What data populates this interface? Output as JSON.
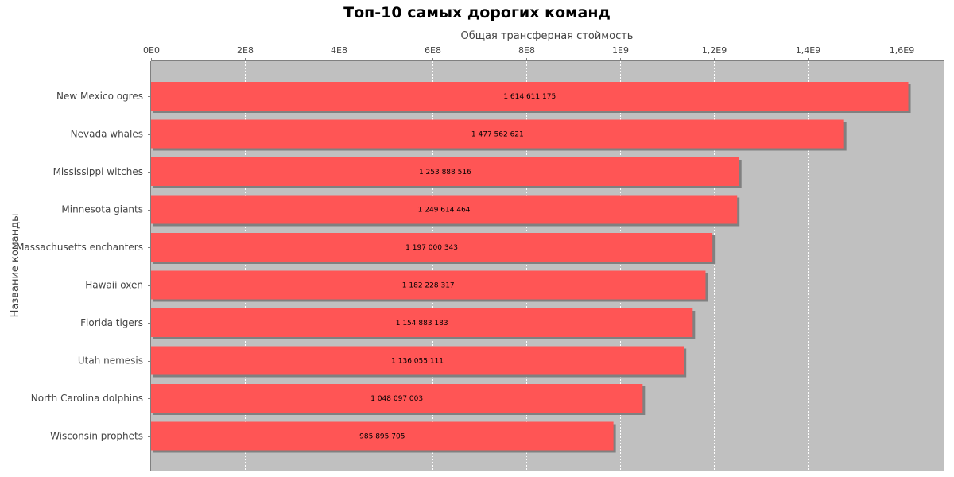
{
  "chart_data": {
    "type": "bar",
    "orientation": "horizontal",
    "title": "Топ-10 самых дорогих команд",
    "xlabel": "Общая трансферная стоймость",
    "ylabel": "Название команды",
    "categories": [
      "New Mexico ogres",
      "Nevada whales",
      "Mississippi witches",
      "Minnesota giants",
      "Massachusetts enchanters",
      "Hawaii oxen",
      "Florida tigers",
      "Utah nemesis",
      "North Carolina dolphins",
      "Wisconsin prophets"
    ],
    "values": [
      1614611175,
      1477562621,
      1253888516,
      1249614464,
      1197000343,
      1182228317,
      1154883183,
      1136055111,
      1048097003,
      985895705
    ],
    "value_labels": [
      "1 614 611 175",
      "1 477 562 621",
      "1 253 888 516",
      "1 249 614 464",
      "1 197 000 343",
      "1 182 228 317",
      "1 154 883 183",
      "1 136 055 111",
      "1 048 097 003",
      "985 895 705"
    ],
    "x_ticks": [
      0,
      200000000,
      400000000,
      600000000,
      800000000,
      1000000000,
      1200000000,
      1400000000,
      1600000000
    ],
    "x_tick_labels": [
      "0E0",
      "2E8",
      "4E8",
      "6E8",
      "8E8",
      "1E9",
      "1,2E9",
      "1,4E9",
      "1,6E9"
    ],
    "xlim": [
      0,
      1690000000
    ],
    "x_axis_position": "top",
    "grid": true,
    "legend": "none",
    "colors": {
      "bar": "#ff5555",
      "bar_shadow": "#808080",
      "plot_background": "#c0c0c0",
      "gridline": "#ffffff",
      "axis": "#808080"
    }
  }
}
